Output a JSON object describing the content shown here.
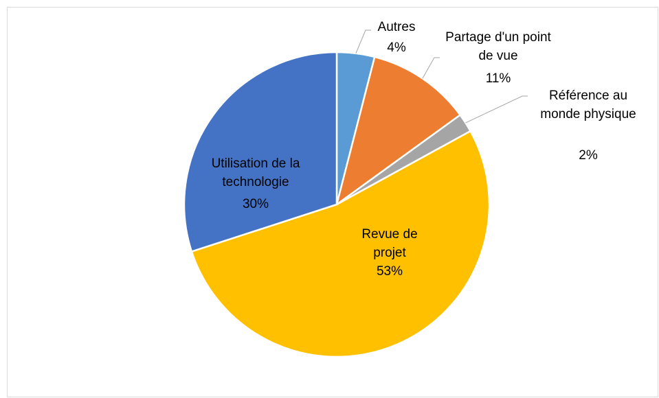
{
  "chart_data": {
    "type": "pie",
    "categories": [
      "Autres",
      "Partage d'un point de vue",
      "Référence au monde physique",
      "Revue de projet",
      "Utilisation de la technologie"
    ],
    "values": [
      4,
      11,
      2,
      53,
      30
    ],
    "value_labels": [
      "4%",
      "11%",
      "2%",
      "53%",
      "30%"
    ],
    "colors": [
      "#5b9bd5",
      "#ed7d31",
      "#a5a5a5",
      "#ffc000",
      "#4472c4"
    ]
  }
}
